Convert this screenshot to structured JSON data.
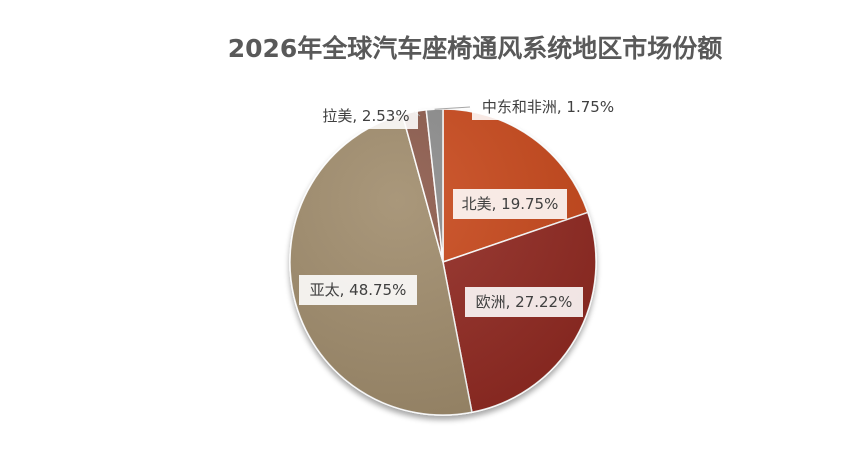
{
  "chart_data": {
    "type": "pie",
    "title": "2026年全球汽车座椅通风系统地区市场份额",
    "categories": [
      "北美",
      "欧洲",
      "亚太",
      "拉美",
      "中东和非洲"
    ],
    "values": [
      19.75,
      27.22,
      48.75,
      2.53,
      1.75
    ],
    "unit": "%",
    "labels": [
      "北美, 19.75%",
      "欧洲, 27.22%",
      "亚太, 48.75%",
      "拉美, 2.53%",
      "中东和非洲, 1.75%"
    ],
    "colors": [
      "#C9481C",
      "#922B21",
      "#A08C6C",
      "#8C5A4C",
      "#8C8C8C"
    ],
    "start_angle_deg": 0,
    "direction": "clockwise",
    "legend": "none"
  }
}
